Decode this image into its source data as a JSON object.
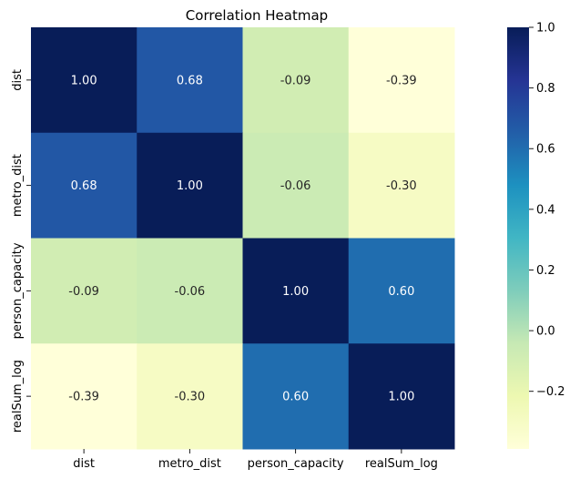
{
  "chart_data": {
    "type": "heatmap",
    "title": "Correlation Heatmap",
    "xlabel": "",
    "ylabel": "",
    "x_categories": [
      "dist",
      "metro_dist",
      "person_capacity",
      "realSum_log"
    ],
    "y_categories": [
      "dist",
      "metro_dist",
      "person_capacity",
      "realSum_log"
    ],
    "values": [
      [
        1.0,
        0.68,
        -0.09,
        -0.39
      ],
      [
        0.68,
        1.0,
        -0.06,
        -0.3
      ],
      [
        -0.09,
        -0.06,
        1.0,
        0.6
      ],
      [
        -0.39,
        -0.3,
        0.6,
        1.0
      ]
    ],
    "value_format": "0.00",
    "colormap": "YlGnBu",
    "colorbar": {
      "range": [
        -0.39,
        1.0
      ],
      "ticks": [
        1.0,
        0.8,
        0.6,
        0.4,
        0.2,
        0.0,
        -0.2
      ],
      "tick_labels": [
        "1.0",
        "0.8",
        "0.6",
        "0.4",
        "0.2",
        "0.0",
        "−0.2"
      ]
    },
    "grid": false
  }
}
